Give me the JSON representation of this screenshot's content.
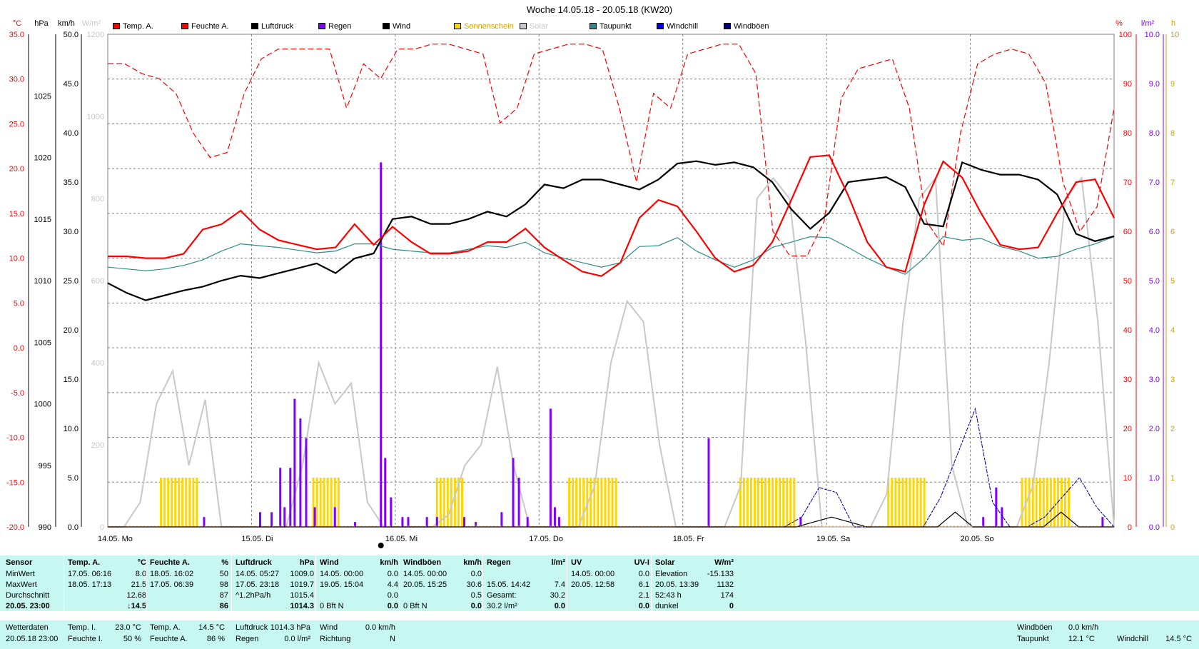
{
  "title": "Woche 14.05.18 - 20.05.18 (KW20)",
  "legend": [
    {
      "label": "Temp. A.",
      "color": "#ff0000"
    },
    {
      "label": "Feuchte A.",
      "color": "#ff0000"
    },
    {
      "label": "Luftdruck",
      "color": "#000000"
    },
    {
      "label": "Regen",
      "color": "#8000ff"
    },
    {
      "label": "Wind",
      "color": "#000000"
    },
    {
      "label": "Sonnenschein",
      "color": "#ffd700"
    },
    {
      "label": "Solar",
      "color": "#c8c8c8"
    },
    {
      "label": "Taupunkt",
      "color": "#2e8b8b"
    },
    {
      "label": "Windchill",
      "color": "#0000ff"
    },
    {
      "label": "Windböen",
      "color": "#000080"
    }
  ],
  "units_top": {
    "temp": "°C",
    "press": "hPa",
    "wind": "km/h",
    "solar": "W/m²",
    "hum": "%",
    "rain": "l/m²",
    "sun": "h"
  },
  "chart_data": {
    "type": "line",
    "x_labels": [
      "14.05. Mo",
      "15.05. Di",
      "16.05. Mi",
      "17.05. Do",
      "18.05. Fr",
      "19.05. Sa",
      "20.05. So"
    ],
    "axes": {
      "temp": {
        "ticks": [
          "35.0",
          "30.0",
          "25.0",
          "20.0",
          "15.0",
          "10.0",
          "5.0",
          "0.0",
          "-5.0",
          "-10.0",
          "-15.0",
          "-20.0"
        ],
        "ylim": [
          -20,
          35
        ]
      },
      "press": {
        "ticks": [
          "1025",
          "1020",
          "1015",
          "1010",
          "1005",
          "1000",
          "995",
          "990"
        ],
        "ylim": [
          990,
          1030
        ]
      },
      "wind": {
        "ticks": [
          "50.0",
          "45.0",
          "40.0",
          "35.0",
          "30.0",
          "25.0",
          "20.0",
          "15.0",
          "10.0",
          "5.0",
          "0.0"
        ],
        "ylim": [
          0,
          50
        ]
      },
      "solar": {
        "ticks": [
          "1200",
          "1000",
          "800",
          "600",
          "400",
          "200",
          "0"
        ],
        "ylim": [
          0,
          1200
        ]
      },
      "hum": {
        "ticks": [
          "100",
          "90",
          "80",
          "70",
          "60",
          "50",
          "40",
          "30",
          "20",
          "10",
          "0"
        ],
        "ylim": [
          0,
          100
        ]
      },
      "rain": {
        "ticks": [
          "10.0",
          "9.0",
          "8.0",
          "7.0",
          "6.0",
          "5.0",
          "4.0",
          "3.0",
          "2.0",
          "1.0",
          "0.0"
        ],
        "ylim": [
          0,
          10
        ]
      },
      "sun": {
        "ticks": [
          "10",
          "9",
          "8",
          "7",
          "6",
          "5",
          "4",
          "3",
          "2",
          "1",
          "0"
        ],
        "ylim": [
          0,
          10
        ]
      }
    },
    "series": [
      {
        "name": "Temp. A.",
        "axis": "temp",
        "values": [
          10.2,
          10.2,
          10.0,
          10.0,
          10.5,
          13.2,
          13.8,
          15.3,
          13.2,
          12.0,
          11.5,
          11.0,
          11.2,
          13.8,
          11.5,
          13.5,
          11.8,
          10.5,
          10.5,
          10.8,
          11.8,
          11.8,
          13.3,
          11.2,
          9.8,
          8.5,
          8.0,
          9.5,
          14.5,
          16.5,
          15.8,
          13.0,
          10.0,
          8.5,
          9.2,
          11.8,
          16.5,
          21.3,
          21.5,
          17.0,
          11.8,
          9.0,
          8.5,
          16.0,
          20.8,
          19.0,
          15.0,
          11.5,
          11.0,
          11.2,
          15.0,
          18.5,
          18.8,
          14.5
        ]
      },
      {
        "name": "Feuchte A.",
        "axis": "hum",
        "values": [
          94,
          94,
          92,
          91,
          88,
          80,
          75,
          76,
          88,
          95,
          97,
          97,
          97,
          97,
          85,
          94,
          91,
          97,
          97,
          98,
          98,
          97,
          96,
          82,
          85,
          96,
          97,
          98,
          98,
          97,
          85,
          70,
          88,
          85,
          96,
          97,
          98,
          98,
          92,
          60,
          55,
          55,
          62,
          87,
          93,
          94,
          95,
          85,
          62,
          57,
          80,
          94,
          96,
          97,
          96,
          90,
          70,
          60,
          65,
          85
        ]
      },
      {
        "name": "Luftdruck",
        "axis": "press",
        "values": [
          1009.8,
          1009.0,
          1008.4,
          1008.8,
          1009.2,
          1009.5,
          1010.0,
          1010.4,
          1010.2,
          1010.6,
          1011.0,
          1011.4,
          1010.6,
          1011.8,
          1012.2,
          1015.0,
          1015.2,
          1014.6,
          1014.6,
          1015.0,
          1015.6,
          1015.2,
          1016.2,
          1017.8,
          1017.5,
          1018.2,
          1018.2,
          1017.8,
          1017.4,
          1018.2,
          1019.5,
          1019.7,
          1019.4,
          1019.6,
          1019.2,
          1018.0,
          1015.8,
          1014.2,
          1015.5,
          1018.0,
          1018.2,
          1018.4,
          1017.6,
          1014.6,
          1014.4,
          1019.6,
          1019.0,
          1018.6,
          1018.6,
          1018.2,
          1017.0,
          1013.8,
          1013.2,
          1013.6
        ]
      },
      {
        "name": "Taupunkt",
        "axis": "temp",
        "values": [
          9.0,
          8.8,
          8.6,
          8.8,
          9.2,
          9.8,
          10.8,
          11.6,
          11.4,
          11.2,
          10.9,
          10.6,
          10.8,
          11.6,
          11.6,
          11.0,
          10.8,
          10.6,
          10.6,
          11.0,
          11.4,
          11.2,
          11.8,
          10.6,
          10.0,
          9.5,
          9.0,
          9.5,
          11.3,
          11.4,
          12.3,
          10.8,
          9.8,
          9.0,
          9.8,
          11.2,
          11.8,
          12.4,
          12.3,
          11.2,
          10.0,
          9.0,
          8.2,
          10.0,
          12.4,
          12.0,
          12.2,
          11.3,
          10.8,
          10.0,
          10.2,
          11.0,
          11.6,
          12.4
        ]
      },
      {
        "name": "Solar",
        "axis": "solar",
        "values": [
          0,
          0,
          60,
          300,
          380,
          150,
          310,
          0,
          0,
          0,
          0,
          0,
          150,
          400,
          300,
          350,
          60,
          0,
          0,
          0,
          0,
          30,
          150,
          200,
          390,
          150,
          0,
          0,
          0,
          0,
          100,
          400,
          550,
          500,
          200,
          0,
          0,
          0,
          0,
          100,
          800,
          850,
          800,
          450,
          0,
          0,
          0,
          0,
          80,
          500,
          800,
          850,
          150,
          0,
          0,
          0,
          0,
          100,
          400,
          800,
          850,
          500,
          0
        ]
      },
      {
        "name": "Wind",
        "axis": "wind",
        "values": [
          0,
          0,
          0,
          0,
          0,
          0,
          0,
          0,
          0,
          0,
          0,
          0,
          0,
          0,
          0,
          0,
          0,
          0,
          0,
          0,
          0,
          0,
          0,
          0,
          0,
          0,
          0,
          0,
          0,
          0,
          0,
          0,
          0,
          0,
          0,
          0,
          0,
          0,
          0,
          0,
          0.5,
          1.0,
          0.5,
          0,
          0,
          0,
          0,
          0,
          1.5,
          0,
          0,
          0,
          0,
          0,
          1.5,
          0,
          0,
          0
        ]
      },
      {
        "name": "Windchill",
        "axis": "wind",
        "values": [
          0,
          0,
          0,
          0,
          0,
          0,
          0,
          0,
          0,
          0,
          0,
          0,
          0,
          0,
          0,
          0,
          0,
          0,
          0,
          0,
          0,
          0,
          0,
          0,
          0,
          0,
          0,
          0,
          0,
          0,
          0,
          0,
          0,
          0,
          0,
          0,
          0,
          0,
          0,
          0,
          1.0,
          4.0,
          3.5,
          0,
          0,
          0,
          0,
          0,
          3.0,
          7.5,
          12.0,
          2.5,
          0,
          0,
          1.0,
          3.0,
          5.0,
          2.0,
          0
        ]
      },
      {
        "name": "Windböen",
        "axis": "wind",
        "values": [
          0,
          0,
          0,
          0,
          0,
          0,
          0,
          0,
          0,
          0,
          0,
          0,
          0,
          0,
          0,
          0,
          0,
          0,
          0,
          0,
          0,
          0,
          0,
          0,
          0,
          0,
          0,
          0,
          0,
          0,
          0,
          0,
          0,
          0,
          0,
          0,
          0,
          0,
          0,
          0,
          1.0,
          4.0,
          3.5,
          0,
          0,
          0,
          0,
          0,
          3.0,
          7.5,
          12.0,
          2.5,
          0,
          0,
          1.0,
          3.0,
          5.0,
          2.0,
          0
        ]
      }
    ],
    "rain_bars": [
      {
        "x": 0.67,
        "v": 0.2
      },
      {
        "x": 1.06,
        "v": 0.3
      },
      {
        "x": 1.14,
        "v": 0.3
      },
      {
        "x": 1.2,
        "v": 1.2
      },
      {
        "x": 1.23,
        "v": 0.4
      },
      {
        "x": 1.27,
        "v": 1.2
      },
      {
        "x": 1.3,
        "v": 2.6
      },
      {
        "x": 1.34,
        "v": 2.2
      },
      {
        "x": 1.38,
        "v": 1.8
      },
      {
        "x": 1.44,
        "v": 0.4
      },
      {
        "x": 1.58,
        "v": 0.4
      },
      {
        "x": 1.72,
        "v": 0.1
      },
      {
        "x": 1.9,
        "v": 7.4
      },
      {
        "x": 1.93,
        "v": 1.4
      },
      {
        "x": 1.97,
        "v": 0.6
      },
      {
        "x": 2.05,
        "v": 0.2
      },
      {
        "x": 2.09,
        "v": 0.2
      },
      {
        "x": 2.22,
        "v": 0.2
      },
      {
        "x": 2.29,
        "v": 0.2
      },
      {
        "x": 2.48,
        "v": 0.2
      },
      {
        "x": 2.56,
        "v": 0.1
      },
      {
        "x": 2.74,
        "v": 0.3
      },
      {
        "x": 2.82,
        "v": 1.4
      },
      {
        "x": 2.86,
        "v": 1.0
      },
      {
        "x": 2.92,
        "v": 0.2
      },
      {
        "x": 3.08,
        "v": 2.4
      },
      {
        "x": 3.11,
        "v": 0.4
      },
      {
        "x": 3.14,
        "v": 0.2
      },
      {
        "x": 4.18,
        "v": 1.8
      },
      {
        "x": 4.82,
        "v": 0.2
      },
      {
        "x": 6.09,
        "v": 0.2
      },
      {
        "x": 6.18,
        "v": 0.8
      },
      {
        "x": 6.22,
        "v": 0.4
      },
      {
        "x": 6.92,
        "v": 0.2
      }
    ],
    "sun_bars": [
      [
        0.37,
        0.63
      ],
      [
        1.43,
        1.62
      ],
      [
        2.29,
        2.47
      ],
      [
        3.21,
        3.55
      ],
      [
        4.4,
        4.79
      ],
      [
        5.43,
        5.69
      ],
      [
        6.36,
        6.69
      ]
    ]
  },
  "stats": {
    "col1": {
      "hdr": "Sensor",
      "rows": [
        "MinWert",
        "MaxWert",
        "Durchschnitt",
        "20.05. 23:00"
      ]
    },
    "col2": {
      "hdr": "Temp. A.",
      "unit": "°C",
      "rows": [
        [
          "17.05. 06:16",
          "8.0"
        ],
        [
          "18.05. 17:13",
          "21.5"
        ],
        [
          "",
          "12.68"
        ],
        [
          "",
          "↓14.5"
        ]
      ]
    },
    "col3": {
      "hdr": "Feuchte A.",
      "unit": "%",
      "rows": [
        [
          "18.05. 16:02",
          "50"
        ],
        [
          "17.05. 06:39",
          "98"
        ],
        [
          "",
          "87"
        ],
        [
          "",
          "86"
        ]
      ]
    },
    "col4": {
      "hdr": "Luftdruck",
      "unit": "hPa",
      "rows": [
        [
          "14.05. 05:27",
          "1009.0"
        ],
        [
          "17.05. 23:18",
          "1019.7"
        ],
        [
          "^1.2hPa/h",
          "1015.4"
        ],
        [
          "",
          "1014.3"
        ]
      ]
    },
    "col5": {
      "hdr": "Wind",
      "unit": "km/h",
      "rows": [
        [
          "14.05. 00:00",
          "0.0"
        ],
        [
          "19.05. 15:04",
          "4.4"
        ],
        [
          "",
          "0.0"
        ],
        [
          "0 Bft N",
          "0.0"
        ]
      ]
    },
    "col6": {
      "hdr": "Windböen",
      "unit": "km/h",
      "rows": [
        [
          "14.05. 00:00",
          "0.0"
        ],
        [
          "20.05. 15:25",
          "30.6"
        ],
        [
          "",
          "0.5"
        ],
        [
          "0 Bft N",
          "0.0"
        ]
      ]
    },
    "col7": {
      "hdr": "Regen",
      "unit": "l/m²",
      "rows": [
        [
          "",
          ""
        ],
        [
          "15.05. 14:42",
          "7.4"
        ],
        [
          "Gesamt:",
          "30.2"
        ],
        [
          "30.2 l/m²",
          "0.0"
        ]
      ]
    },
    "col8": {
      "hdr": "UV",
      "unit": "UV-I",
      "rows": [
        [
          "14.05. 00:00",
          "0.0"
        ],
        [
          "20.05. 12:58",
          "6.1"
        ],
        [
          "",
          "2.1"
        ],
        [
          "",
          "0.0"
        ]
      ]
    },
    "col9": {
      "hdr": "Solar",
      "unit": "W/m²",
      "rows": [
        [
          "Elevation",
          "-15.133"
        ],
        [
          "20.05. 13:39",
          "1132"
        ],
        [
          "52:43 h",
          "174"
        ],
        [
          "dunkel",
          "0"
        ]
      ]
    }
  },
  "bottom": {
    "wetterdaten": "Wetterdaten",
    "time": "20.05.18 23:00",
    "tempI_l": "Temp. I.",
    "tempI_v": "23.0 °C",
    "feuchteI_l": "Feuchte I.",
    "feuchteI_v": "50 %",
    "tempA_l": "Temp. A.",
    "tempA_v": "14.5 °C",
    "feuchteA_l": "Feuchte A.",
    "feuchteA_v": "86 %",
    "luft_l": "Luftdruck",
    "luft_v": "1014.3 hPa",
    "regen_l": "Regen",
    "regen_v": "0.0 l/m²",
    "wind_l": "Wind",
    "wind_v": "0.0 km/h",
    "richt_l": "Richtung",
    "richt_v": "N",
    "boen_l": "Windböen",
    "boen_v": "0.0 km/h",
    "tau_l": "Taupunkt",
    "tau_v": "12.1 °C",
    "chill_l": "Windchill",
    "chill_v": "14.5 °C"
  }
}
